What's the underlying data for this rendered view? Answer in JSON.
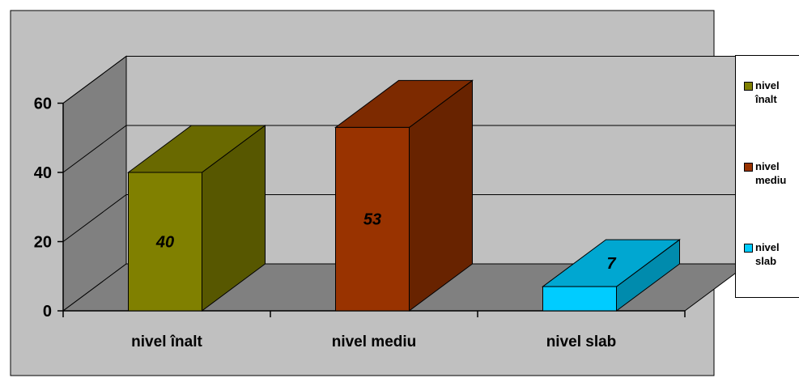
{
  "chart_data": {
    "type": "bar",
    "style": "3d",
    "categories": [
      "nivel înalt",
      "nivel mediu",
      "nivel slab"
    ],
    "values": [
      40,
      53,
      7
    ],
    "colors": [
      "#808000",
      "#993300",
      "#00CCFF"
    ],
    "ylim": [
      0,
      60
    ],
    "yticks": [
      "0",
      "20",
      "40",
      "60"
    ],
    "data_labels": [
      "40",
      "53",
      "7"
    ],
    "grid": true,
    "legend_position": "right",
    "legend": [
      {
        "label": "nivel\nînalt",
        "color": "#808000"
      },
      {
        "label": "nivel\nmediu",
        "color": "#993300"
      },
      {
        "label": "nivel\nslab",
        "color": "#00CCFF"
      }
    ],
    "plot_background": "#C0C0C0"
  }
}
